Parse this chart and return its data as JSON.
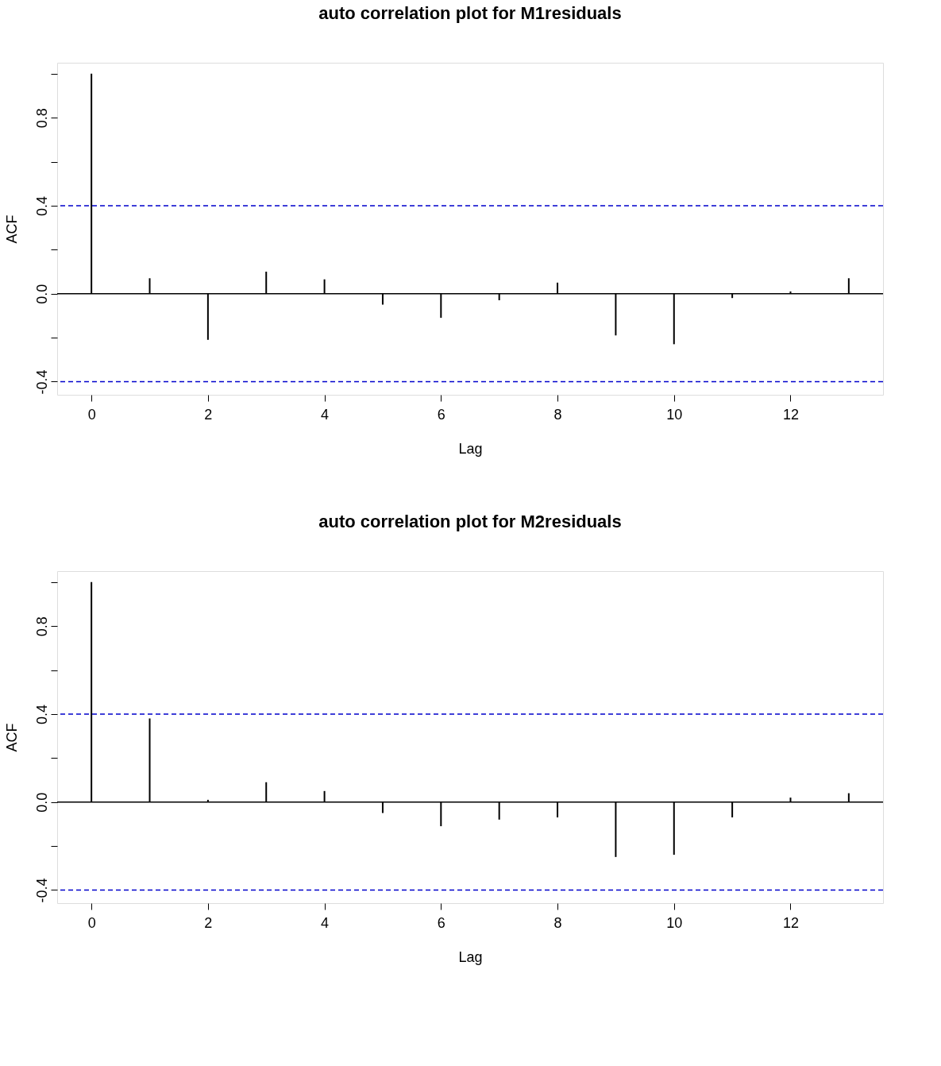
{
  "chart_data": [
    {
      "type": "bar",
      "title": "auto correlation plot for M1residuals",
      "xlabel": "Lag",
      "ylabel": "ACF",
      "x": [
        0,
        1,
        2,
        3,
        4,
        5,
        6,
        7,
        8,
        9,
        10,
        11,
        12,
        13
      ],
      "series": [
        {
          "color": "#000000",
          "values": [
            1.0,
            0.07,
            -0.21,
            0.1,
            0.065,
            -0.05,
            -0.11,
            -0.03,
            0.05,
            -0.19,
            -0.23,
            -0.02,
            0.01,
            0.07
          ]
        }
      ],
      "xlim": [
        -0.52,
        13.52
      ],
      "xticks": [
        0,
        2,
        4,
        6,
        8,
        10,
        12
      ],
      "ylim": [
        -0.46,
        1.05
      ],
      "yticks": [
        -0.4,
        {
          "value": -0.2,
          "label": null
        },
        {
          "value": 0,
          "label": "0.0"
        },
        {
          "value": 0.2,
          "label": null
        },
        0.4,
        {
          "value": 0.6,
          "label": null
        },
        0.8,
        {
          "value": 1.0,
          "label": null
        }
      ],
      "ref_lines": [
        {
          "axis": "y",
          "value": 0.4,
          "color": "#0000cc",
          "line_style": "dashed"
        },
        {
          "axis": "y",
          "value": -0.4,
          "color": "#0000cc",
          "line_style": "dashed"
        },
        {
          "axis": "y",
          "value": 0,
          "color": "#000000",
          "line_style": "solid"
        }
      ],
      "grid": false
    },
    {
      "type": "bar",
      "title": "auto correlation plot for M2residuals",
      "xlabel": "Lag",
      "ylabel": "ACF",
      "x": [
        0,
        1,
        2,
        3,
        4,
        5,
        6,
        7,
        8,
        9,
        10,
        11,
        12,
        13
      ],
      "series": [
        {
          "color": "#000000",
          "values": [
            1.0,
            0.38,
            0.01,
            0.09,
            0.05,
            -0.05,
            -0.11,
            -0.08,
            -0.07,
            -0.25,
            -0.24,
            -0.07,
            0.02,
            0.04
          ]
        }
      ],
      "xlim": [
        -0.52,
        13.52
      ],
      "xticks": [
        0,
        2,
        4,
        6,
        8,
        10,
        12
      ],
      "ylim": [
        -0.46,
        1.05
      ],
      "yticks": [
        -0.4,
        {
          "value": -0.2,
          "label": null
        },
        {
          "value": 0,
          "label": "0.0"
        },
        {
          "value": 0.2,
          "label": null
        },
        0.4,
        {
          "value": 0.6,
          "label": null
        },
        0.8,
        {
          "value": 1.0,
          "label": null
        }
      ],
      "ref_lines": [
        {
          "axis": "y",
          "value": 0.4,
          "color": "#0000cc",
          "line_style": "dashed"
        },
        {
          "axis": "y",
          "value": -0.4,
          "color": "#0000cc",
          "line_style": "dashed"
        },
        {
          "axis": "y",
          "value": 0,
          "color": "#000000",
          "line_style": "solid"
        }
      ],
      "grid": false
    }
  ]
}
